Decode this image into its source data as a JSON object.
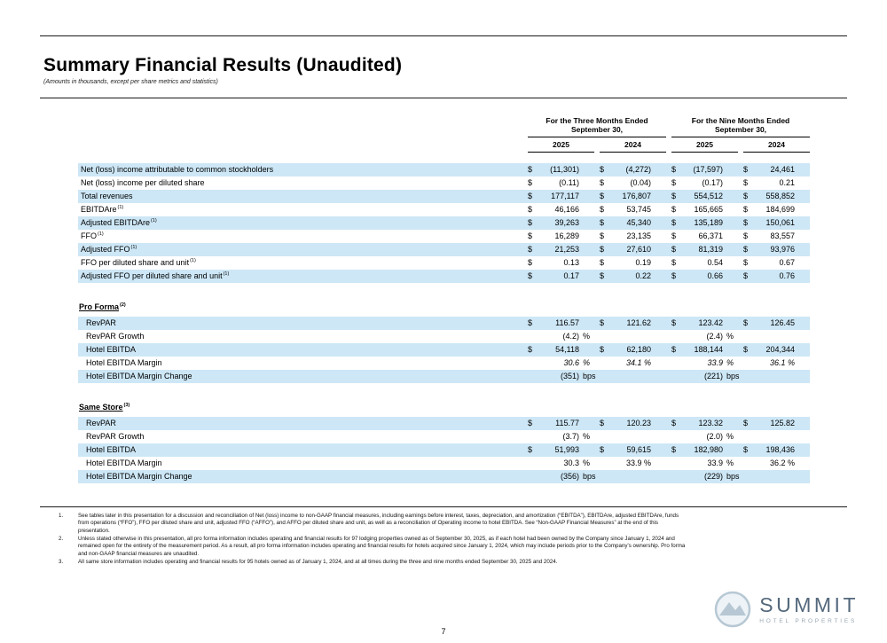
{
  "page": {
    "title": "Summary Financial Results (Unaudited)",
    "subtitle": "(Amounts in thousands, except per share metrics and statistics)",
    "page_number": "7"
  },
  "table": {
    "groups": [
      {
        "line1": "For the Three Months Ended",
        "line2": "September 30,"
      },
      {
        "line1": "For the Nine Months Ended",
        "line2": "September 30,"
      }
    ],
    "years": [
      "2025",
      "2024",
      "2025",
      "2024"
    ],
    "main_rows": [
      {
        "label": "Net (loss) income attributable to common stockholders",
        "cells": [
          [
            "$",
            "(11,301)",
            ""
          ],
          [
            "$",
            "(4,272)",
            ""
          ],
          [
            "$",
            "(17,597)",
            ""
          ],
          [
            "$",
            "24,461",
            ""
          ]
        ]
      },
      {
        "label": "Net (loss) income per diluted share",
        "cells": [
          [
            "$",
            "(0.11)",
            ""
          ],
          [
            "$",
            "(0.04)",
            ""
          ],
          [
            "$",
            "(0.17)",
            ""
          ],
          [
            "$",
            "0.21",
            ""
          ]
        ]
      },
      {
        "label": "Total revenues",
        "cells": [
          [
            "$",
            "177,117",
            ""
          ],
          [
            "$",
            "176,807",
            ""
          ],
          [
            "$",
            "554,512",
            ""
          ],
          [
            "$",
            "558,852",
            ""
          ]
        ]
      },
      {
        "label": "EBITDAre",
        "sup": "(1)",
        "cells": [
          [
            "$",
            "46,166",
            ""
          ],
          [
            "$",
            "53,745",
            ""
          ],
          [
            "$",
            "165,665",
            ""
          ],
          [
            "$",
            "184,699",
            ""
          ]
        ]
      },
      {
        "label": "Adjusted EBITDAre",
        "sup": "(1)",
        "cells": [
          [
            "$",
            "39,263",
            ""
          ],
          [
            "$",
            "45,340",
            ""
          ],
          [
            "$",
            "135,189",
            ""
          ],
          [
            "$",
            "150,061",
            ""
          ]
        ]
      },
      {
        "label": "FFO",
        "sup": "(1)",
        "cells": [
          [
            "$",
            "16,289",
            ""
          ],
          [
            "$",
            "23,135",
            ""
          ],
          [
            "$",
            "66,371",
            ""
          ],
          [
            "$",
            "83,557",
            ""
          ]
        ]
      },
      {
        "label": "Adjusted FFO",
        "sup": "(1)",
        "cells": [
          [
            "$",
            "21,253",
            ""
          ],
          [
            "$",
            "27,610",
            ""
          ],
          [
            "$",
            "81,319",
            ""
          ],
          [
            "$",
            "93,976",
            ""
          ]
        ]
      },
      {
        "label": "FFO per diluted share and unit",
        "sup": "(1)",
        "cells": [
          [
            "$",
            "0.13",
            ""
          ],
          [
            "$",
            "0.19",
            ""
          ],
          [
            "$",
            "0.54",
            ""
          ],
          [
            "$",
            "0.67",
            ""
          ]
        ]
      },
      {
        "label": "Adjusted FFO per diluted share and unit",
        "sup": "(1)",
        "cells": [
          [
            "$",
            "0.17",
            ""
          ],
          [
            "$",
            "0.22",
            ""
          ],
          [
            "$",
            "0.66",
            ""
          ],
          [
            "$",
            "0.76",
            ""
          ]
        ]
      }
    ],
    "sections": [
      {
        "header": "Pro Forma",
        "sup": "(2)",
        "rows": [
          {
            "label": "RevPAR",
            "cells": [
              [
                "$",
                "116.57",
                ""
              ],
              [
                "$",
                "121.62",
                ""
              ],
              [
                "$",
                "123.42",
                ""
              ],
              [
                "$",
                "126.45",
                ""
              ]
            ]
          },
          {
            "label": "RevPAR Growth",
            "cells": [
              [
                "",
                "(4.2)",
                "%"
              ],
              [
                "",
                "",
                ""
              ],
              [
                "",
                "(2.4)",
                "%"
              ],
              [
                "",
                "",
                ""
              ]
            ]
          },
          {
            "label": "Hotel EBITDA",
            "cells": [
              [
                "$",
                "54,118",
                ""
              ],
              [
                "$",
                "62,180",
                ""
              ],
              [
                "$",
                "188,144",
                ""
              ],
              [
                "$",
                "204,344",
                ""
              ]
            ]
          },
          {
            "label": "Hotel EBITDA Margin",
            "italic": true,
            "cells": [
              [
                "",
                "30.6",
                "%"
              ],
              [
                "",
                "34.1 %",
                ""
              ],
              [
                "",
                "33.9",
                "%"
              ],
              [
                "",
                "36.1 %",
                ""
              ]
            ]
          },
          {
            "label": "Hotel EBITDA Margin Change",
            "cells": [
              [
                "",
                "(351)",
                "bps"
              ],
              [
                "",
                "",
                ""
              ],
              [
                "",
                "(221)",
                "bps"
              ],
              [
                "",
                "",
                ""
              ]
            ]
          }
        ]
      },
      {
        "header": "Same Store",
        "sup": "(3)",
        "rows": [
          {
            "label": "RevPAR",
            "cells": [
              [
                "$",
                "115.77",
                ""
              ],
              [
                "$",
                "120.23",
                ""
              ],
              [
                "$",
                "123.32",
                ""
              ],
              [
                "$",
                "125.82",
                ""
              ]
            ]
          },
          {
            "label": "RevPAR Growth",
            "cells": [
              [
                "",
                "(3.7)",
                "%"
              ],
              [
                "",
                "",
                ""
              ],
              [
                "",
                "(2.0)",
                "%"
              ],
              [
                "",
                "",
                ""
              ]
            ]
          },
          {
            "label": "Hotel EBITDA",
            "cells": [
              [
                "$",
                "51,993",
                ""
              ],
              [
                "$",
                "59,615",
                ""
              ],
              [
                "$",
                "182,980",
                ""
              ],
              [
                "$",
                "198,436",
                ""
              ]
            ]
          },
          {
            "label": "Hotel EBITDA Margin",
            "cells": [
              [
                "",
                "30.3",
                "%"
              ],
              [
                "",
                "33.9 %",
                ""
              ],
              [
                "",
                "33.9",
                "%"
              ],
              [
                "",
                "36.2 %",
                ""
              ]
            ]
          },
          {
            "label": "Hotel EBITDA Margin Change",
            "cells": [
              [
                "",
                "(356)",
                "bps"
              ],
              [
                "",
                "",
                ""
              ],
              [
                "",
                "(229)",
                "bps"
              ],
              [
                "",
                "",
                ""
              ]
            ]
          }
        ]
      }
    ]
  },
  "footnotes": [
    {
      "num": "1.",
      "text": "See tables later in this presentation for a discussion and reconciliation of Net (loss) income to non-GAAP financial measures, including earnings before interest, taxes, depreciation, and amortization (“EBITDA”), EBITDAre, adjusted EBITDAre, funds from operations (“FFO”), FFO per diluted share and unit, adjusted FFO (“AFFO”), and AFFO per diluted share and unit, as well as a reconciliation of Operating income to hotel EBITDA. See “Non-GAAP Financial Measures” at the end of this presentation."
    },
    {
      "num": "2.",
      "text": "Unless stated otherwise in this presentation, all pro forma information includes operating and financial results for 97 lodging properties owned as of September 30, 2025, as if each hotel had been owned by the Company since January 1, 2024 and remained open for the entirety of the measurement period. As a result, all pro forma information includes operating and financial results for hotels acquired since January 1, 2024, which may include periods prior to the Company’s ownership. Pro forma and non-GAAP financial measures are unaudited."
    },
    {
      "num": "3.",
      "text": "All same store information includes operating and financial results for 95 hotels owned as of January 1, 2024, and at all times during the three and nine months ended September 30, 2025 and 2024."
    }
  ],
  "logo": {
    "name": "SUMMIT",
    "tagline": "HOTEL PROPERTIES",
    "accent_color": "#54687c",
    "icon_color": "#b7c8d4",
    "row_highlight_color": "#cde7f6"
  }
}
